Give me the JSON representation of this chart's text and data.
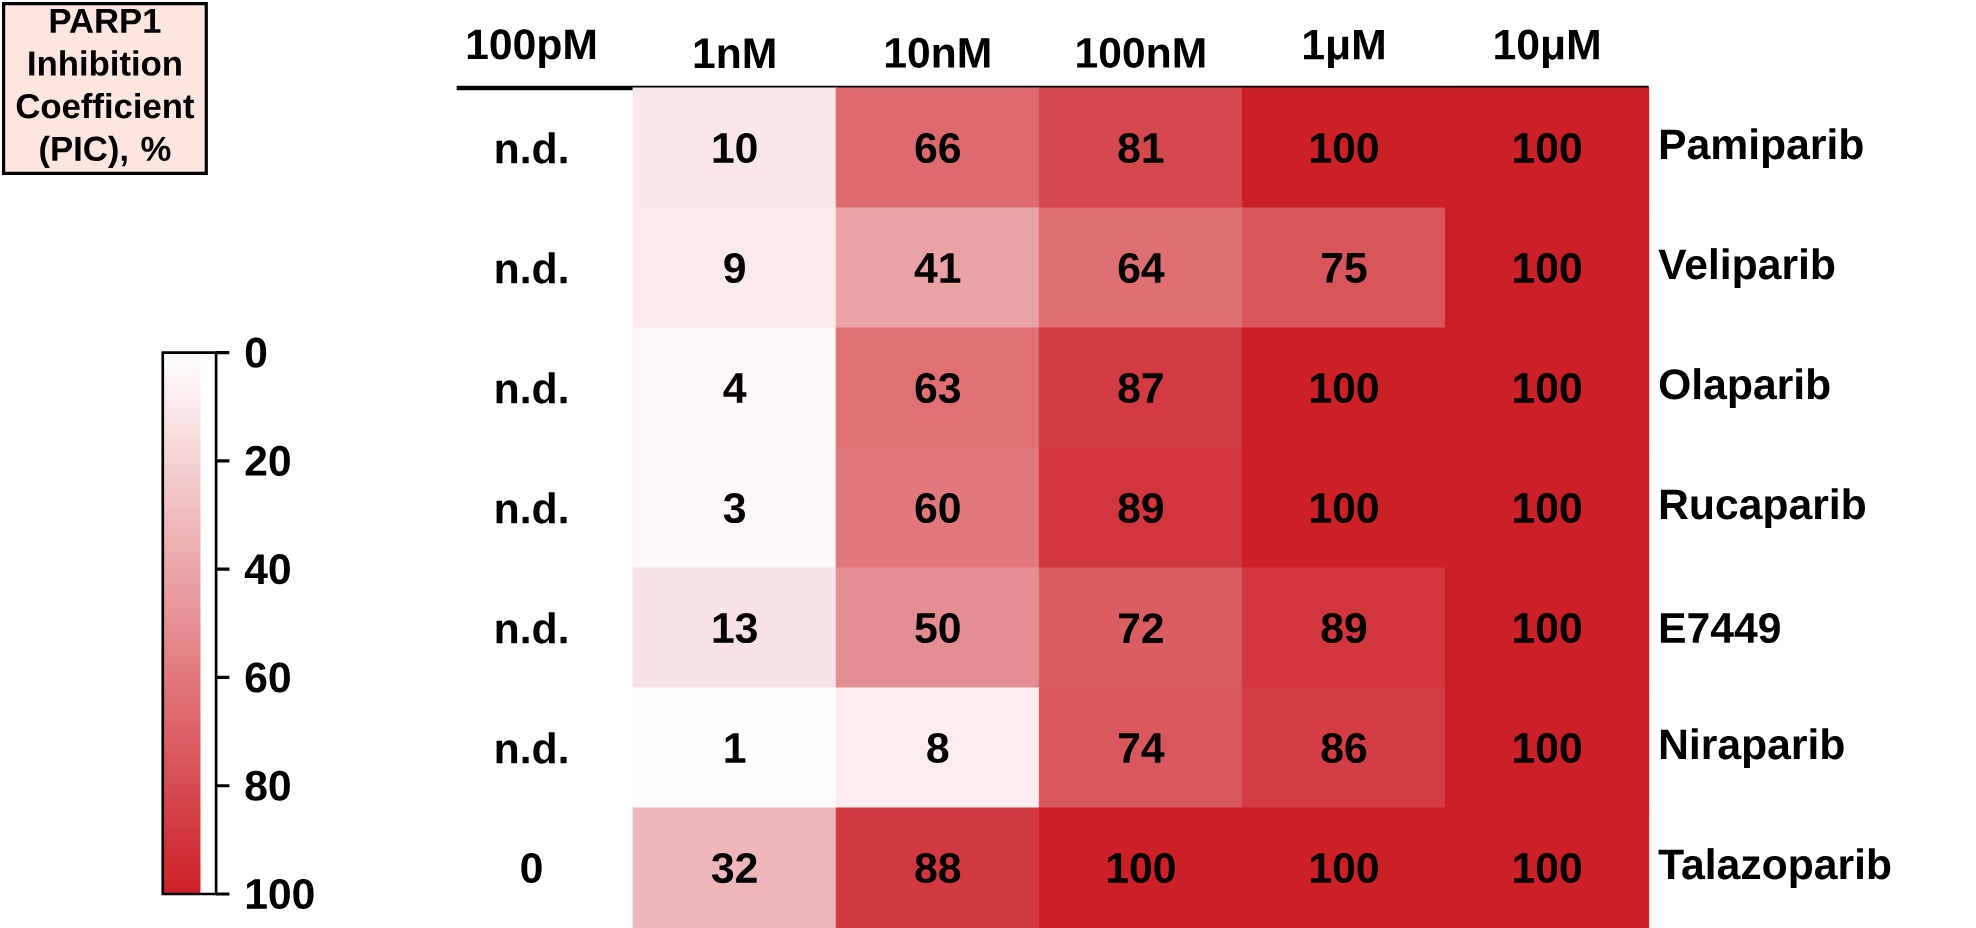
{
  "chart_data": {
    "type": "heatmap",
    "clabel": "PARP1 Inhibition Coefficient (PIC), %",
    "categories": [
      "100pM",
      "1nM",
      "10nM",
      "100nM",
      "1μM",
      "10μM"
    ],
    "y_categories": [
      "Pamiparib",
      "Veliparib",
      "Olaparib",
      "Rucaparib",
      "E7449",
      "Niraparib",
      "Talazoparib"
    ],
    "cells": [
      [
        null,
        10,
        66,
        81,
        100,
        100
      ],
      [
        null,
        9,
        41,
        64,
        75,
        100
      ],
      [
        null,
        4,
        63,
        87,
        100,
        100
      ],
      [
        null,
        3,
        60,
        89,
        100,
        100
      ],
      [
        null,
        13,
        50,
        72,
        89,
        100
      ],
      [
        null,
        1,
        8,
        74,
        86,
        100
      ],
      [
        0,
        32,
        88,
        100,
        100,
        100
      ]
    ],
    "cell_labels": [
      [
        "n.d.",
        "10",
        "66",
        "81",
        "100",
        "100"
      ],
      [
        "n.d.",
        "9",
        "41",
        "64",
        "75",
        "100"
      ],
      [
        "n.d.",
        "4",
        "63",
        "87",
        "100",
        "100"
      ],
      [
        "n.d.",
        "3",
        "60",
        "89",
        "100",
        "100"
      ],
      [
        "n.d.",
        "13",
        "50",
        "72",
        "89",
        "100"
      ],
      [
        "n.d.",
        "1",
        "8",
        "74",
        "86",
        "100"
      ],
      [
        "0",
        "32",
        "88",
        "100",
        "100",
        "100"
      ]
    ],
    "clim": [
      0,
      100
    ],
    "cticks": [
      0,
      20,
      40,
      60,
      80,
      100
    ]
  }
}
